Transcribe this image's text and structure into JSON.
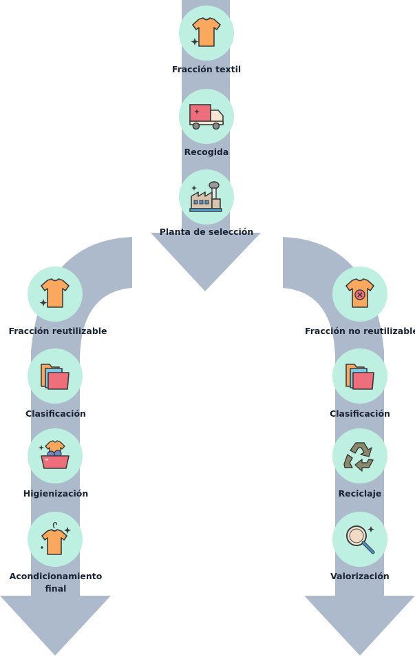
{
  "center_path": [
    {
      "label": "Fracción textil",
      "icon": "tshirt-sparkle-icon"
    },
    {
      "label": "Recogida",
      "icon": "delivery-truck-icon"
    },
    {
      "label": "Planta de selección",
      "icon": "factory-icon"
    }
  ],
  "left_path": [
    {
      "label": "Fracción reutilizable",
      "icon": "tshirt-sparkle-icon"
    },
    {
      "label": "Clasificación",
      "icon": "folders-icon"
    },
    {
      "label": "Higienización",
      "icon": "laundry-basin-icon"
    },
    {
      "label_line1": "Acondicionamiento",
      "label_line2": "final",
      "icon": "hanger-tshirt-icon"
    }
  ],
  "right_path": [
    {
      "label": "Fracción no reutilizable",
      "icon": "tshirt-x-icon"
    },
    {
      "label": "Clasificación",
      "icon": "folders-icon"
    },
    {
      "label": "Reciclaje",
      "icon": "recycle-icon"
    },
    {
      "label": "Valorización",
      "icon": "magnifier-icon"
    }
  ],
  "colors": {
    "arrow": "#adbacc",
    "node": "#bdf0e1",
    "shirt": "#f9a85e",
    "pink": "#ef6e7b",
    "text": "#1b2433"
  }
}
